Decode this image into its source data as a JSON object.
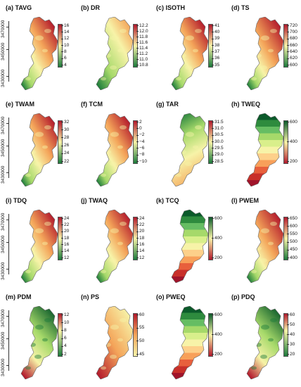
{
  "panels": [
    {
      "label": "(a) TAVG",
      "ticks": [
        "16",
        "14",
        "12",
        "10",
        "8",
        "6",
        "4"
      ],
      "style": "temp"
    },
    {
      "label": "(b) DR",
      "ticks": [
        "12.2",
        "12.0",
        "11.8",
        "11.6",
        "11.4",
        "11.2",
        "11.0",
        "10.8"
      ],
      "style": "dr"
    },
    {
      "label": "(c) ISOTH",
      "ticks": [
        "41",
        "40",
        "39",
        "38",
        "37",
        "36",
        "35"
      ],
      "style": "temp"
    },
    {
      "label": "(d) TS",
      "ticks": [
        "720",
        "700",
        "680",
        "660",
        "640",
        "620",
        "600"
      ],
      "style": "ts"
    },
    {
      "label": "(e) TWAM",
      "ticks": [
        "32",
        "30",
        "28",
        "26",
        "24",
        "22"
      ],
      "style": "temp"
    },
    {
      "label": "(f) TCM",
      "ticks": [
        "2",
        "0",
        "−2",
        "−4",
        "−6",
        "−8",
        "−10"
      ],
      "style": "temp"
    },
    {
      "label": "(g) TAR",
      "ticks": [
        "31.5",
        "31.0",
        "30.5",
        "30.0",
        "29.5",
        "29.0",
        "28.5"
      ],
      "style": "tar"
    },
    {
      "label": "(h) TWEQ",
      "ticks": [
        "600",
        "400",
        "200"
      ],
      "style": "bands"
    },
    {
      "label": "(i) TDQ",
      "ticks": [
        "24",
        "22",
        "20",
        "18",
        "16",
        "14",
        "12"
      ],
      "style": "temp"
    },
    {
      "label": "(j) TWAQ",
      "ticks": [
        "24",
        "22",
        "20",
        "18",
        "16",
        "14",
        "12"
      ],
      "style": "temp"
    },
    {
      "label": "(k) TCQ",
      "ticks": [
        "600",
        "400",
        "200"
      ],
      "style": "bands"
    },
    {
      "label": "(l) PWEM",
      "ticks": [
        "650",
        "600",
        "550",
        "500",
        "450",
        "400"
      ],
      "style": "ts"
    },
    {
      "label": "(m) PDM",
      "ticks": [
        "12",
        "10",
        "8",
        "6",
        "4",
        "2"
      ],
      "style": "pdm"
    },
    {
      "label": "(n) PS",
      "ticks": [
        "60",
        "55",
        "50",
        "45"
      ],
      "style": "ps"
    },
    {
      "label": "(o) PWEQ",
      "ticks": [
        "600",
        "400",
        "200"
      ],
      "style": "bands"
    },
    {
      "label": "(p) PDQ",
      "ticks": [
        "60",
        "50",
        "40",
        "30",
        "20"
      ],
      "style": "pdm"
    }
  ],
  "y_axis_ticks": [
    "3470000",
    "3450000",
    "3430000"
  ],
  "colors": {
    "red": "#b2182b",
    "orange": "#f4a55a",
    "yellow": "#f7f3a8",
    "lightgreen": "#a6d96a",
    "green": "#1a7a3a",
    "darkgreen": "#0b5a2a"
  }
}
